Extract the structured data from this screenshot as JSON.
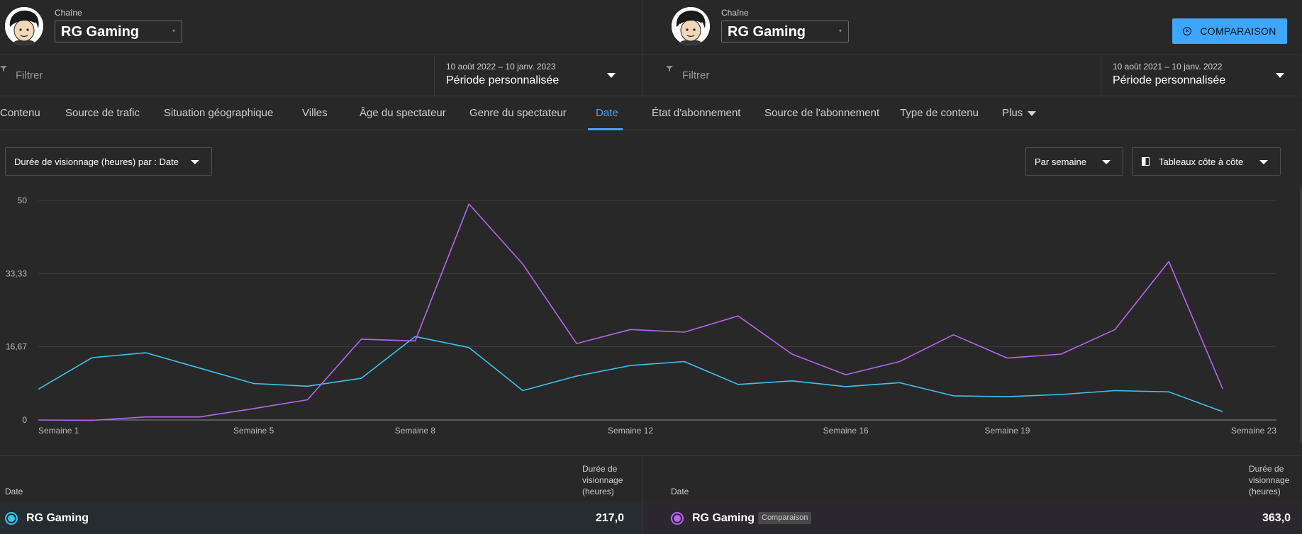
{
  "header": {
    "left": {
      "channel_label": "Chaîne",
      "channel_name": "RG Gaming"
    },
    "right": {
      "channel_label": "Chaîne",
      "channel_name": "RG Gaming"
    },
    "compare_button": "COMPARAISON"
  },
  "filter": {
    "left": {
      "placeholder": "Filtrer",
      "date_range": "10 août 2022 – 10 janv. 2023",
      "period_type": "Période personnalisée"
    },
    "right": {
      "placeholder": "Filtrer",
      "date_range": "10 août 2021 – 10 janv. 2022",
      "period_type": "Période personnalisée"
    }
  },
  "tabs": [
    {
      "label": "Contenu"
    },
    {
      "label": "Source de trafic"
    },
    {
      "label": "Situation géographique"
    },
    {
      "label": "Villes"
    },
    {
      "label": "Âge du spectateur"
    },
    {
      "label": "Genre du spectateur"
    },
    {
      "label": "Date",
      "active": true
    },
    {
      "label": "État d'abonnement"
    },
    {
      "label": "Source de l'abonnement"
    },
    {
      "label": "Type de contenu"
    },
    {
      "label": "Plus"
    }
  ],
  "controls": {
    "metric_dropdown": "Durée de visionnage (heures) par : Date",
    "interval_dropdown": "Par semaine",
    "view_dropdown": "Tableaux côte à côte"
  },
  "chart_data": {
    "type": "line",
    "x_tick_labels": [
      "Semaine 1",
      "Semaine 5",
      "Semaine 8",
      "Semaine 12",
      "Semaine 16",
      "Semaine 19",
      "Semaine 23"
    ],
    "x": [
      1,
      2,
      3,
      4,
      5,
      6,
      7,
      8,
      9,
      10,
      11,
      12,
      13,
      14,
      15,
      16,
      17,
      18,
      19,
      20,
      21,
      22,
      23,
      24
    ],
    "y_ticks": [
      "0",
      "16,67",
      "33,33",
      "50"
    ],
    "ylim": [
      0,
      50
    ],
    "grid": true,
    "series": [
      {
        "name": "RG Gaming",
        "color": "#3ec3ef",
        "values": [
          7,
          14.2,
          15.3,
          11.8,
          8.3,
          7.7,
          9.5,
          19,
          16.5,
          6.7,
          10,
          12.4,
          13.3,
          8.1,
          8.9,
          7.6,
          8.5,
          5.5,
          5.3,
          5.8,
          6.7,
          6.4,
          1.9,
          0
        ]
      },
      {
        "name": "RG Gaming",
        "color": "#b865f0",
        "values": [
          0,
          -0.1,
          0.7,
          0.7,
          2.6,
          4.6,
          18.4,
          18,
          49.2,
          35.5,
          17.4,
          20.6,
          20,
          23.7,
          15,
          10.3,
          13.3,
          19.4,
          14.1,
          15,
          20.6,
          36.1,
          7.1,
          0
        ]
      }
    ]
  },
  "table": {
    "left": {
      "col_date": "Date",
      "col_metric": "Durée de\nvisionnage\n(heures)",
      "row": {
        "name": "RG Gaming",
        "value": "217,0"
      }
    },
    "right": {
      "col_date": "Date",
      "col_metric": "Durée de\nvisionnage\n(heures)",
      "row": {
        "name": "RG Gaming",
        "badge": "Comparaison",
        "value": "363,0"
      }
    }
  }
}
